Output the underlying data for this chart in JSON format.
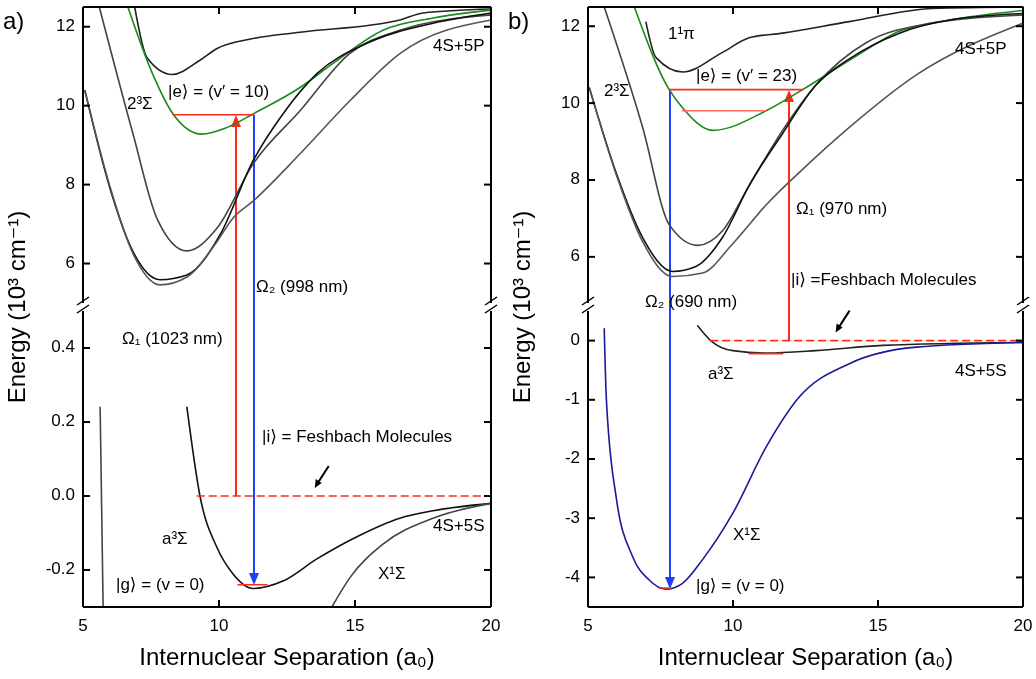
{
  "chart_data": [
    {
      "type": "line",
      "title": "a)",
      "xlim": [
        5,
        20
      ],
      "xticks": [
        5,
        10,
        15,
        20
      ],
      "ylim": [
        5,
        12.5
      ],
      "yticks": [
        6,
        8,
        10,
        12
      ],
      "tick_labels": "y",
      "annotations": [
        "4S+5P",
        "2³Σ",
        "|e⟩ = (v′ = 10)",
        "Ω₂ (998 nm)"
      ],
      "series": [
        {
          "color": "#222222",
          "x": [
            6.9,
            7.35,
            8.27,
            9.3,
            9.93,
            11.25,
            12.98,
            16.65,
            17.5,
            20
          ],
          "values": [
            12.5,
            11.22,
            10.79,
            11.15,
            11.45,
            11.7,
            11.86,
            12.17,
            12.35,
            12.45
          ]
        },
        {
          "color": "#1a8a1a",
          "x": [
            6.65,
            7.5,
            8.31,
            9.37,
            10.3,
            11.25,
            12.98,
            14.19,
            16.03,
            17.87,
            20
          ],
          "values": [
            12.5,
            10.9,
            9.79,
            9.28,
            9.45,
            9.79,
            10.46,
            11.07,
            11.91,
            12.22,
            12.42
          ]
        },
        {
          "color": "#444444",
          "x": [
            5.6,
            6.84,
            7.72,
            8.82,
            9.93,
            11.25,
            12.98,
            14.8,
            16.65,
            20
          ],
          "values": [
            12.5,
            9.28,
            7.14,
            6.32,
            6.9,
            8.52,
            9.87,
            11.32,
            11.91,
            12.3
          ]
        },
        {
          "color": "#111111",
          "x": [
            5.07,
            5.99,
            6.84,
            7.83,
            8.82,
            10.04,
            11.25,
            12.35,
            13.6,
            15.44,
            17.87,
            20
          ],
          "values": [
            10.38,
            7.91,
            6.3,
            5.59,
            5.71,
            6.73,
            8.6,
            9.79,
            10.81,
            11.58,
            12.09,
            12.35
          ]
        },
        {
          "color": "#555555",
          "x": [
            5.07,
            5.99,
            6.84,
            7.83,
            8.82,
            9.93,
            10.51,
            11.25,
            12.98,
            14.82,
            16.65,
            20
          ],
          "values": [
            10.38,
            7.95,
            6.25,
            5.46,
            5.66,
            6.56,
            7.15,
            7.58,
            8.78,
            10.13,
            11.32,
            12.17
          ]
        },
        {
          "color": "#ff2a1a",
          "x": [
            8.31,
            11.25
          ],
          "values": [
            9.77,
            9.77
          ]
        }
      ]
    },
    {
      "type": "line",
      "xlabel": "Internuclear Separation (a₀)",
      "ylabel": "Energy (10³ cm⁻¹)",
      "xlim": [
        5,
        20
      ],
      "xticks": [
        5,
        10,
        15,
        20
      ],
      "ylim": [
        -0.3,
        0.5
      ],
      "yticks": [
        -0.2,
        {
          "value": 0,
          "label": "0.0"
        },
        0.2,
        0.4
      ],
      "annotations": [
        "Ω₁ (1023 nm)",
        "|i⟩ = Feshbach Molecules",
        "a³Σ",
        "|g⟩ = (v = 0)",
        "X¹Σ",
        "4S+5S"
      ],
      "series": [
        {
          "color": "#111111",
          "x": [
            8.82,
            9.3,
            9.93,
            10.51,
            11.25,
            12.35,
            13.6,
            15.07,
            16.65,
            17.87,
            20
          ],
          "values": [
            0.24,
            0,
            -0.14,
            -0.21,
            -0.25,
            -0.23,
            -0.17,
            -0.11,
            -0.06,
            -0.04,
            -0.02
          ]
        },
        {
          "color": "#444444",
          "x": [
            14.15,
            14.82,
            16.03,
            17.87,
            20
          ],
          "values": [
            -0.3,
            -0.22,
            -0.13,
            -0.06,
            -0.02
          ]
        },
        {
          "color": "#444444",
          "x": [
            5.63,
            5.74
          ],
          "values": [
            0.24,
            -0.3
          ]
        },
        {
          "color": "#ff2a1a",
          "line_style": "dashed",
          "x": [
            9.2,
            20
          ],
          "values": [
            0,
            0
          ]
        },
        {
          "color": "#ff2a1a",
          "x": [
            10.7,
            11.76
          ],
          "values": [
            -0.24,
            -0.24
          ]
        }
      ]
    },
    {
      "type": "line",
      "title": "b)",
      "xlim": [
        5,
        20
      ],
      "xticks": [
        5,
        10,
        15,
        20
      ],
      "ylim": [
        4.8,
        12.5
      ],
      "yticks": [
        6,
        8,
        10,
        12
      ],
      "tick_labels": "y",
      "annotations": [
        "1¹π",
        "2³Σ",
        "|e⟩ = (v′ = 23)",
        "4S+5P",
        "Ω₁ (970 nm)",
        "|i⟩ =Feshbach Molecules",
        "Ω₂ (690 nm)"
      ],
      "series": [
        {
          "color": "#222222",
          "x": [
            7.0,
            7.34,
            8.26,
            9.64,
            10.56,
            11.71,
            14.01,
            16.88,
            20
          ],
          "values": [
            12.1,
            11.19,
            10.81,
            11.32,
            11.7,
            11.82,
            12.12,
            12.46,
            12.5
          ]
        },
        {
          "color": "#1a8a1a",
          "x": [
            6.6,
            7.8,
            8.26,
            9.3,
            11.14,
            12.4,
            14.01,
            15.74,
            17.46,
            20
          ],
          "values": [
            12.5,
            10.35,
            9.88,
            9.29,
            9.8,
            10.35,
            11.11,
            11.87,
            12.16,
            12.41
          ]
        },
        {
          "color": "#444444",
          "x": [
            5.56,
            6.88,
            7.8,
            8.78,
            9.64,
            10.56,
            11.71,
            12.86,
            14.59,
            16.88,
            20
          ],
          "values": [
            12.5,
            9.38,
            6.84,
            6.3,
            6.68,
            7.86,
            9.29,
            10.47,
            11.57,
            12.08,
            12.29
          ]
        },
        {
          "color": "#111111",
          "x": [
            5.05,
            5.97,
            6.88,
            7.92,
            8.72,
            9.64,
            10.56,
            11.71,
            12.86,
            14.01,
            15.74,
            17.46,
            20
          ],
          "values": [
            10.39,
            8.19,
            6.51,
            5.62,
            5.75,
            6.51,
            7.86,
            9.21,
            10.47,
            11.15,
            11.82,
            12.16,
            12.33
          ]
        },
        {
          "color": "#555555",
          "x": [
            5.05,
            5.97,
            6.88,
            7.92,
            8.95,
            9.99,
            11.14,
            12.29,
            14.01,
            16.31,
            20
          ],
          "values": [
            10.39,
            8.15,
            6.4,
            5.49,
            5.58,
            6.34,
            7.35,
            8.2,
            9.37,
            10.73,
            12.08
          ]
        },
        {
          "color": "#ff2a1a",
          "x": [
            7.8,
            12.4
          ],
          "values": [
            10.35,
            10.35
          ]
        },
        {
          "color": "#ff6a5a",
          "x": [
            8.26,
            11.14
          ],
          "values": [
            9.8,
            9.8
          ]
        }
      ]
    },
    {
      "type": "line",
      "xlabel": "Internuclear Separation (a₀)",
      "ylabel": "Energy (10³ cm⁻¹)",
      "xlim": [
        5,
        20
      ],
      "xticks": [
        5,
        10,
        15,
        20
      ],
      "ylim": [
        -4.5,
        0.5
      ],
      "yticks": [
        -4,
        -3,
        -2,
        -1,
        0
      ],
      "annotations": [
        "a³Σ",
        "4S+5S",
        "X¹Σ",
        "|g⟩ = (v = 0)"
      ],
      "series": [
        {
          "color": "#222222",
          "x": [
            8.78,
            9.23,
            9.99,
            11.14,
            12.86,
            15.16,
            20
          ],
          "values": [
            0.25,
            0,
            -0.17,
            -0.21,
            -0.17,
            -0.08,
            -0.03
          ]
        },
        {
          "color": "#1a1a9a",
          "x": [
            5.56,
            5.63,
            5.97,
            6.54,
            7.1,
            7.69,
            8.26,
            8.95,
            9.99,
            11.14,
            12.29,
            14.01,
            16.31,
            20
          ],
          "values": [
            0.2,
            -0.95,
            -2.64,
            -3.65,
            -4.04,
            -4.2,
            -4.1,
            -3.7,
            -2.92,
            -1.8,
            -0.95,
            -0.39,
            -0.11,
            -0.03
          ]
        },
        {
          "color": "#ff2a1a",
          "line_style": "dashed",
          "x": [
            9.23,
            20
          ],
          "values": [
            0,
            0
          ]
        },
        {
          "color": "#ff2a1a",
          "x": [
            7.46,
            7.86
          ],
          "values": [
            -4.18,
            -4.18
          ]
        },
        {
          "color": "#ff2a1a",
          "x": [
            10.56,
            11.71
          ],
          "values": [
            -0.22,
            -0.22
          ]
        }
      ]
    }
  ]
}
